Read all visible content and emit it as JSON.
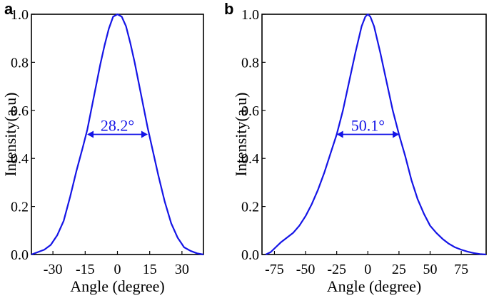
{
  "chart_data": [
    {
      "panel_label": "a",
      "type": "line",
      "xlabel": "Angle (degree)",
      "ylabel": "Intensity(a.u)",
      "xlim": [
        -40,
        40
      ],
      "ylim": [
        0,
        1.0
      ],
      "xticks": [
        -30,
        -15,
        0,
        15,
        30
      ],
      "yticks": [
        0.0,
        0.2,
        0.4,
        0.6,
        0.8,
        1.0
      ],
      "grid": false,
      "line_color": "#1414e6",
      "annotation": {
        "text": "28.2°",
        "x_left": -14.1,
        "x_right": 14.1,
        "y": 0.5
      },
      "series": [
        {
          "x": [
            -40,
            -37,
            -34,
            -31,
            -28,
            -25,
            -22,
            -19,
            -16,
            -14,
            -12,
            -10,
            -8,
            -6,
            -4,
            -2,
            0,
            2,
            4,
            6,
            8,
            10,
            12,
            14,
            16,
            19,
            22,
            25,
            28,
            31,
            34,
            37,
            40
          ],
          "values": [
            0.0,
            0.01,
            0.02,
            0.04,
            0.08,
            0.14,
            0.24,
            0.35,
            0.45,
            0.52,
            0.61,
            0.7,
            0.79,
            0.87,
            0.94,
            0.99,
            1.0,
            0.99,
            0.95,
            0.88,
            0.8,
            0.71,
            0.62,
            0.53,
            0.45,
            0.33,
            0.22,
            0.13,
            0.07,
            0.03,
            0.015,
            0.005,
            0.0
          ]
        }
      ]
    },
    {
      "panel_label": "b",
      "type": "line",
      "xlabel": "Angle (degree)",
      "ylabel": "Intensity(a.u)",
      "xlim": [
        -85,
        95
      ],
      "ylim": [
        0,
        1.0
      ],
      "xticks": [
        -75,
        -50,
        -25,
        0,
        25,
        50,
        75
      ],
      "yticks": [
        0.0,
        0.2,
        0.4,
        0.6,
        0.8,
        1.0
      ],
      "grid": false,
      "line_color": "#1414e6",
      "annotation": {
        "text": "50.1°",
        "x_left": -25,
        "x_right": 25.1,
        "y": 0.5
      },
      "series": [
        {
          "x": [
            -82,
            -78,
            -74,
            -70,
            -65,
            -60,
            -55,
            -50,
            -45,
            -40,
            -35,
            -30,
            -25,
            -20,
            -15,
            -10,
            -5,
            -2,
            0,
            2,
            5,
            10,
            15,
            20,
            25,
            30,
            35,
            40,
            45,
            50,
            55,
            60,
            65,
            70,
            75,
            80,
            85,
            90,
            95
          ],
          "values": [
            0.0,
            0.01,
            0.03,
            0.05,
            0.07,
            0.09,
            0.12,
            0.16,
            0.21,
            0.27,
            0.34,
            0.42,
            0.5,
            0.6,
            0.72,
            0.84,
            0.95,
            0.99,
            1.0,
            0.99,
            0.95,
            0.84,
            0.72,
            0.6,
            0.5,
            0.41,
            0.31,
            0.23,
            0.17,
            0.12,
            0.09,
            0.065,
            0.045,
            0.03,
            0.02,
            0.012,
            0.006,
            0.002,
            0.0
          ]
        }
      ]
    }
  ]
}
